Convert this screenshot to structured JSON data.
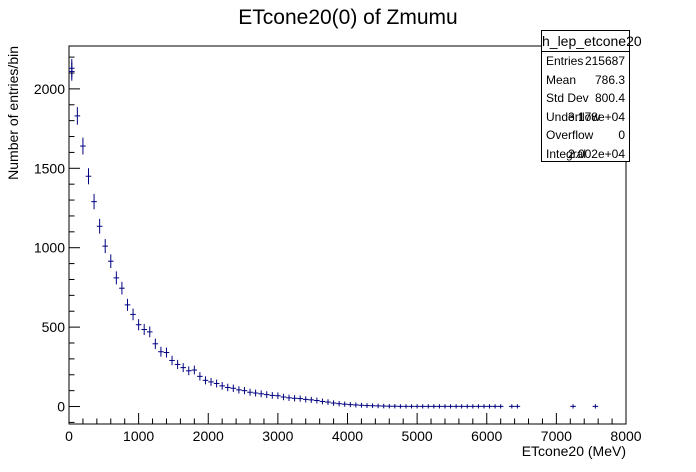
{
  "chart_data": {
    "type": "histogram",
    "title": "ETcone20(0) of Zmumu",
    "xlabel": "ETcone20 (MeV)",
    "ylabel": "Number of entries/bin",
    "xlim": [
      0,
      8000
    ],
    "ylim": [
      -110,
      2270
    ],
    "xticks": [
      "0",
      "1000",
      "2000",
      "3000",
      "4000",
      "5000",
      "6000",
      "7000",
      "8000"
    ],
    "yticks": [
      "0",
      "500",
      "1000",
      "1500",
      "2000"
    ],
    "bin_width": 80,
    "marker_color": "#000080",
    "x": [
      40,
      120,
      200,
      280,
      360,
      440,
      520,
      600,
      680,
      760,
      840,
      920,
      1000,
      1080,
      1160,
      1240,
      1320,
      1400,
      1480,
      1560,
      1640,
      1720,
      1800,
      1880,
      1960,
      2040,
      2120,
      2200,
      2280,
      2360,
      2440,
      2520,
      2600,
      2680,
      2760,
      2840,
      2920,
      3000,
      3080,
      3160,
      3240,
      3320,
      3400,
      3480,
      3560,
      3640,
      3720,
      3800,
      3880,
      3960,
      4040,
      4120,
      4200,
      4280,
      4360,
      4440,
      4520,
      4600,
      4680,
      4760,
      4840,
      4920,
      5000,
      5080,
      5160,
      5240,
      5320,
      5400,
      5480,
      5560,
      5640,
      5720,
      5800,
      5880,
      5960,
      6040,
      6120,
      6200,
      6360,
      6440,
      7240,
      7560
    ],
    "values": [
      2110,
      1830,
      1640,
      1450,
      1290,
      1135,
      1010,
      915,
      810,
      745,
      640,
      580,
      515,
      485,
      470,
      395,
      345,
      340,
      290,
      265,
      245,
      225,
      230,
      190,
      165,
      155,
      145,
      130,
      120,
      115,
      105,
      100,
      90,
      85,
      80,
      75,
      70,
      68,
      60,
      55,
      52,
      50,
      45,
      42,
      38,
      32,
      28,
      22,
      18,
      15,
      12,
      10,
      8,
      6,
      5,
      4,
      3,
      2,
      2,
      1,
      1,
      1,
      1,
      1,
      1,
      1,
      1,
      1,
      1,
      1,
      1,
      1,
      1,
      1,
      1,
      1,
      1,
      1,
      1,
      1,
      1,
      1
    ],
    "first_bin_extra": 2130
  },
  "stats": {
    "name": "h_lep_etcone20",
    "rows": [
      {
        "key": "Entries",
        "value": "215687"
      },
      {
        "key": "Mean",
        "value": "786.3"
      },
      {
        "key": "Std Dev",
        "value": "800.4"
      },
      {
        "key": "Underflow",
        "value": "3.178e+04"
      },
      {
        "key": "Overflow",
        "value": "0"
      },
      {
        "key": "Integral",
        "value": "2.002e+04"
      }
    ]
  }
}
